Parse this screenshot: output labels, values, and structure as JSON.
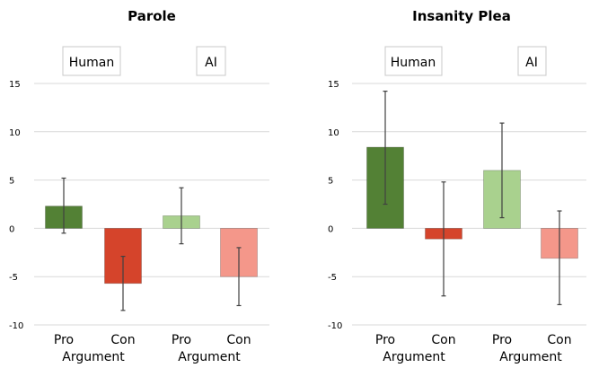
{
  "colors": {
    "human_pro": "#538135",
    "human_con": "#d5442b",
    "ai_pro": "#a9d18e",
    "ai_con": "#f4978a",
    "grid": "#d9d9d9",
    "error_bar": "#404040",
    "box_border": "#c8c8c8"
  },
  "chart_data": [
    {
      "type": "bar",
      "title": "Parole",
      "ylim": [
        -10,
        15
      ],
      "yticks": [
        -10,
        -5,
        0,
        5,
        10,
        15
      ],
      "grid": true,
      "group_labels": [
        "Human",
        "AI"
      ],
      "group_axis_label": "Argument",
      "categories": [
        "Pro",
        "Con",
        "Pro",
        "Con"
      ],
      "values": [
        2.3,
        -5.7,
        1.3,
        -5.0
      ],
      "error_low": [
        -0.5,
        -8.5,
        -1.6,
        -8.0
      ],
      "error_high": [
        5.2,
        -2.9,
        4.2,
        -2.0
      ],
      "bar_colors": [
        "human_pro",
        "human_con",
        "ai_pro",
        "ai_con"
      ]
    },
    {
      "type": "bar",
      "title": "Insanity Plea",
      "ylim": [
        -10,
        15
      ],
      "yticks": [
        -10,
        -5,
        0,
        5,
        10,
        15
      ],
      "grid": true,
      "group_labels": [
        "Human",
        "AI"
      ],
      "group_axis_label": "Argument",
      "categories": [
        "Pro",
        "Con",
        "Pro",
        "Con"
      ],
      "values": [
        8.4,
        -1.1,
        6.0,
        -3.1
      ],
      "error_low": [
        2.5,
        -7.0,
        1.1,
        -7.9
      ],
      "error_high": [
        14.2,
        4.8,
        10.9,
        1.8
      ],
      "bar_colors": [
        "human_pro",
        "human_con",
        "ai_pro",
        "ai_con"
      ]
    }
  ]
}
